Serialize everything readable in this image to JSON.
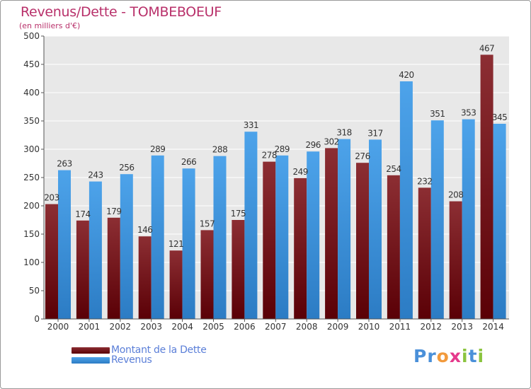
{
  "header": {
    "title": "Revenus/Dette - TOMBEBOEUF",
    "unit": "(en milliers d'€)"
  },
  "legend": {
    "items": [
      {
        "label": "Montant de la Dette",
        "color": "#6e0f14"
      },
      {
        "label": "Revenus",
        "color": "#3d95de"
      }
    ]
  },
  "logo": {
    "letters": [
      "P",
      "r",
      "o",
      "x",
      "i",
      "t",
      "i"
    ],
    "colors": [
      "#4a90d9",
      "#4a90d9",
      "#f29a3c",
      "#e53a8c",
      "#8bc43f",
      "#4a90d9",
      "#8bc43f"
    ]
  },
  "chart_data": {
    "type": "bar",
    "title": "Revenus/Dette - TOMBEBOEUF",
    "ylabel": "(en milliers d'€)",
    "xlabel": "",
    "ylim": [
      0,
      500
    ],
    "yticks": [
      0,
      50,
      100,
      150,
      200,
      250,
      300,
      350,
      400,
      450,
      500
    ],
    "grid": true,
    "legend_position": "bottom-left",
    "categories": [
      "2000",
      "2001",
      "2002",
      "2003",
      "2004",
      "2005",
      "2006",
      "2007",
      "2008",
      "2009",
      "2010",
      "2011",
      "2012",
      "2013",
      "2014"
    ],
    "series": [
      {
        "name": "Montant de la Dette",
        "color": "#6e0f14",
        "values": [
          203,
          174,
          179,
          146,
          121,
          157,
          175,
          278,
          249,
          302,
          276,
          254,
          232,
          208,
          467
        ]
      },
      {
        "name": "Revenus",
        "color": "#3d95de",
        "values": [
          263,
          243,
          256,
          289,
          266,
          288,
          331,
          289,
          296,
          318,
          317,
          420,
          351,
          353,
          345
        ]
      }
    ]
  }
}
